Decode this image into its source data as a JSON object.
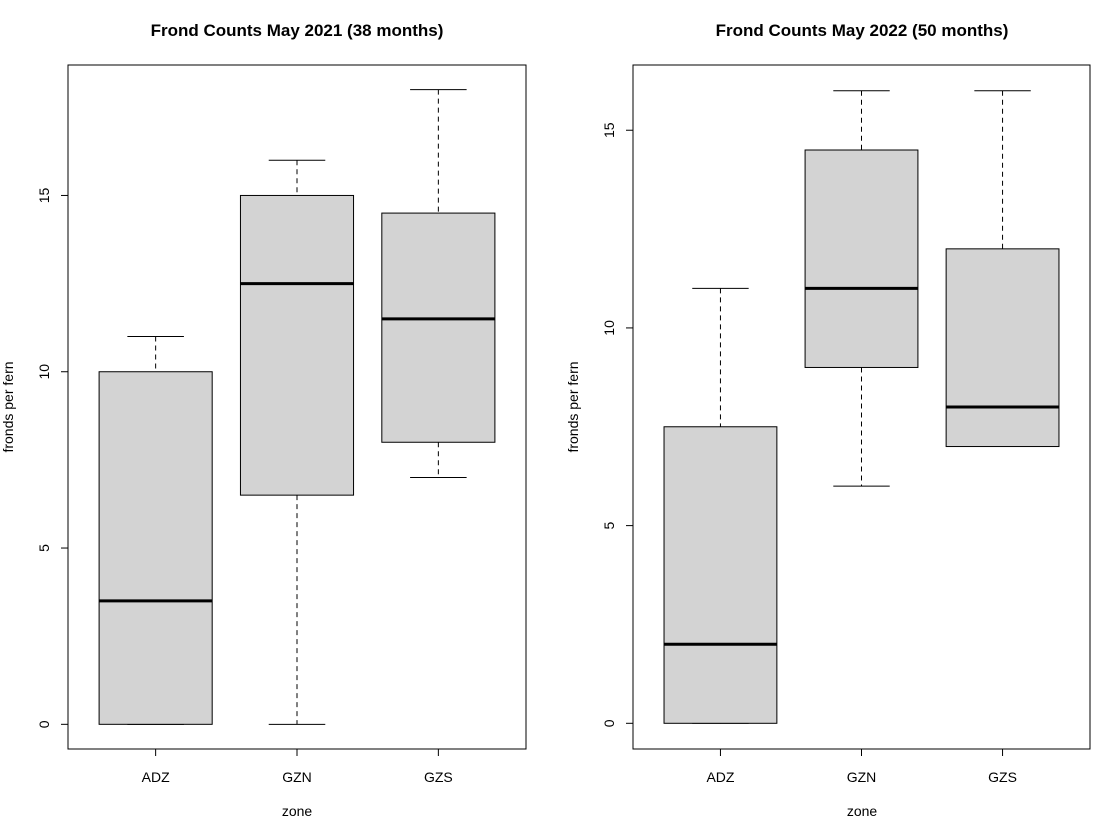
{
  "chart_data": [
    {
      "type": "boxplot",
      "title": "Frond Counts May 2021 (38 months)",
      "xlabel": "zone",
      "ylabel": "fronds per fern",
      "categories": [
        "ADZ",
        "GZN",
        "GZS"
      ],
      "ylim": [
        -0.7,
        18.7
      ],
      "yticks": [
        0,
        5,
        10,
        15
      ],
      "boxes": [
        {
          "category": "ADZ",
          "min": 0,
          "q1": 0,
          "median": 3.5,
          "q3": 10,
          "max": 11
        },
        {
          "category": "GZN",
          "min": 0,
          "q1": 6.5,
          "median": 12.5,
          "q3": 15,
          "max": 16
        },
        {
          "category": "GZS",
          "min": 7,
          "q1": 8,
          "median": 11.5,
          "q3": 14.5,
          "max": 18
        }
      ],
      "box_fill": "#d3d3d3",
      "grid": false
    },
    {
      "type": "boxplot",
      "title": "Frond Counts May 2022 (50 months)",
      "xlabel": "zone",
      "ylabel": "fronds per fern",
      "categories": [
        "ADZ",
        "GZN",
        "GZS"
      ],
      "ylim": [
        -0.65,
        16.65
      ],
      "yticks": [
        0,
        5,
        10,
        15
      ],
      "boxes": [
        {
          "category": "ADZ",
          "min": 0,
          "q1": 0,
          "median": 2,
          "q3": 7.5,
          "max": 11
        },
        {
          "category": "GZN",
          "min": 6,
          "q1": 9,
          "median": 11,
          "q3": 14.5,
          "max": 16
        },
        {
          "category": "GZS",
          "min": 7,
          "q1": 7,
          "median": 8,
          "q3": 12,
          "max": 16
        }
      ],
      "box_fill": "#d3d3d3",
      "grid": false
    }
  ]
}
